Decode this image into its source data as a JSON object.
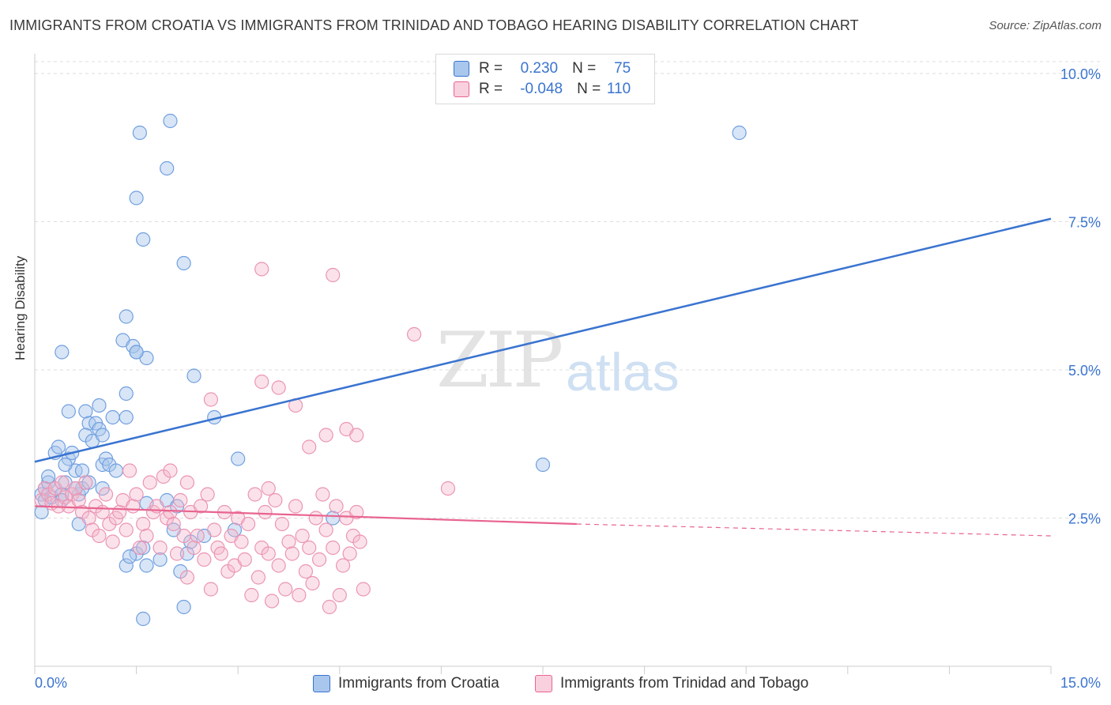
{
  "title": "IMMIGRANTS FROM CROATIA VS IMMIGRANTS FROM TRINIDAD AND TOBAGO HEARING DISABILITY CORRELATION CHART",
  "source": "Source: ZipAtlas.com",
  "watermark": {
    "part1": "ZIP",
    "part2": "atlas"
  },
  "colors": {
    "blue": "#3a74d0",
    "blue_fill": "#a9c6ec",
    "pink": "#e8648f",
    "pink_fill": "#f4b6ca",
    "grid": "#dddddd",
    "axis_text": "#3a74d0"
  },
  "legend": {
    "rows": [
      {
        "r_label": "R =",
        "r_value": "0.230",
        "n_label": "N =",
        "n_value": "75"
      },
      {
        "r_label": "R =",
        "r_value": "-0.048",
        "n_label": "N =",
        "n_value": "110"
      }
    ]
  },
  "bottom_legend": {
    "series1": "Immigrants from Croatia",
    "series2": "Immigrants from Trinidad and Tobago"
  },
  "chart_data": {
    "type": "scatter",
    "title": "IMMIGRANTS FROM CROATIA VS IMMIGRANTS FROM TRINIDAD AND TOBAGO HEARING DISABILITY CORRELATION CHART",
    "xlabel": "",
    "ylabel": "Hearing Disability",
    "xlim": [
      0,
      15
    ],
    "ylim": [
      0,
      10.2
    ],
    "x_tick_labels": [
      "0.0%",
      "15.0%"
    ],
    "y_ticks": [
      2.5,
      5.0,
      7.5,
      10.0
    ],
    "y_tick_labels": [
      "2.5%",
      "5.0%",
      "7.5%",
      "10.0%"
    ],
    "grid": true,
    "legend_position": "top-center",
    "series": [
      {
        "name": "Immigrants from Croatia",
        "color": "#3a74d0",
        "trend": {
          "x": [
            0,
            15
          ],
          "y": [
            3.45,
            7.55
          ]
        },
        "points": [
          [
            0.1,
            2.6
          ],
          [
            0.1,
            2.9
          ],
          [
            0.15,
            3.0
          ],
          [
            0.15,
            2.8
          ],
          [
            0.2,
            3.1
          ],
          [
            0.25,
            2.85
          ],
          [
            0.2,
            3.2
          ],
          [
            0.3,
            3.6
          ],
          [
            0.35,
            3.7
          ],
          [
            0.3,
            3.0
          ],
          [
            0.4,
            2.9
          ],
          [
            0.45,
            3.1
          ],
          [
            0.5,
            3.5
          ],
          [
            0.5,
            4.3
          ],
          [
            0.55,
            3.6
          ],
          [
            0.6,
            3.3
          ],
          [
            0.4,
            2.8
          ],
          [
            0.65,
            2.9
          ],
          [
            0.7,
            3.0
          ],
          [
            0.75,
            4.3
          ],
          [
            0.8,
            4.1
          ],
          [
            0.75,
            3.9
          ],
          [
            0.85,
            3.8
          ],
          [
            0.9,
            4.1
          ],
          [
            0.95,
            4.0
          ],
          [
            1.0,
            3.4
          ],
          [
            1.05,
            3.5
          ],
          [
            1.1,
            3.4
          ],
          [
            0.7,
            3.3
          ],
          [
            0.8,
            3.1
          ],
          [
            0.6,
            3.0
          ],
          [
            0.65,
            2.4
          ],
          [
            0.45,
            3.4
          ],
          [
            1.0,
            3.0
          ],
          [
            0.4,
            5.3
          ],
          [
            0.95,
            4.4
          ],
          [
            1.15,
            4.2
          ],
          [
            1.35,
            4.2
          ],
          [
            1.35,
            4.6
          ],
          [
            1.2,
            3.3
          ],
          [
            1.0,
            3.9
          ],
          [
            1.3,
            5.5
          ],
          [
            1.45,
            5.4
          ],
          [
            1.65,
            5.2
          ],
          [
            1.35,
            5.9
          ],
          [
            1.5,
            5.3
          ],
          [
            1.5,
            7.9
          ],
          [
            1.55,
            9.0
          ],
          [
            1.6,
            7.2
          ],
          [
            1.5,
            5.3
          ],
          [
            2.0,
            9.2
          ],
          [
            1.95,
            8.4
          ],
          [
            2.2,
            6.8
          ],
          [
            2.35,
            4.9
          ],
          [
            1.35,
            1.7
          ],
          [
            1.5,
            1.9
          ],
          [
            1.6,
            2.0
          ],
          [
            1.65,
            1.7
          ],
          [
            1.85,
            1.8
          ],
          [
            2.15,
            1.6
          ],
          [
            2.25,
            1.9
          ],
          [
            2.05,
            2.3
          ],
          [
            2.3,
            2.1
          ],
          [
            2.5,
            2.2
          ],
          [
            1.65,
            2.75
          ],
          [
            1.95,
            2.8
          ],
          [
            2.1,
            2.7
          ],
          [
            1.4,
            1.85
          ],
          [
            1.6,
            0.8
          ],
          [
            2.2,
            1.0
          ],
          [
            2.65,
            4.2
          ],
          [
            3.0,
            3.5
          ],
          [
            2.95,
            2.3
          ],
          [
            4.4,
            2.5
          ],
          [
            7.5,
            3.4
          ],
          [
            10.4,
            9.0
          ]
        ]
      },
      {
        "name": "Immigrants from Trinidad and Tobago",
        "color": "#e8648f",
        "trend": {
          "x": [
            0,
            8.0,
            15
          ],
          "y": [
            2.7,
            2.4,
            2.2
          ]
        },
        "points": [
          [
            0.1,
            2.8
          ],
          [
            0.15,
            3.0
          ],
          [
            0.2,
            2.9
          ],
          [
            0.25,
            2.75
          ],
          [
            0.3,
            3.0
          ],
          [
            0.35,
            2.7
          ],
          [
            0.4,
            3.1
          ],
          [
            0.45,
            2.85
          ],
          [
            0.5,
            2.7
          ],
          [
            0.55,
            2.9
          ],
          [
            0.6,
            3.0
          ],
          [
            0.65,
            2.8
          ],
          [
            0.7,
            2.6
          ],
          [
            0.75,
            3.1
          ],
          [
            0.8,
            2.5
          ],
          [
            0.85,
            2.3
          ],
          [
            0.9,
            2.7
          ],
          [
            0.95,
            2.2
          ],
          [
            1.0,
            2.6
          ],
          [
            1.05,
            2.9
          ],
          [
            1.1,
            2.4
          ],
          [
            1.15,
            2.1
          ],
          [
            1.2,
            2.5
          ],
          [
            1.25,
            2.6
          ],
          [
            1.3,
            2.8
          ],
          [
            1.35,
            2.3
          ],
          [
            1.4,
            3.3
          ],
          [
            1.45,
            2.7
          ],
          [
            1.5,
            2.9
          ],
          [
            1.55,
            2.0
          ],
          [
            1.6,
            2.4
          ],
          [
            1.65,
            2.2
          ],
          [
            1.7,
            3.1
          ],
          [
            1.75,
            2.6
          ],
          [
            1.8,
            2.7
          ],
          [
            1.85,
            2.0
          ],
          [
            1.9,
            3.2
          ],
          [
            1.95,
            2.5
          ],
          [
            2.0,
            2.6
          ],
          [
            2.05,
            2.4
          ],
          [
            2.1,
            1.9
          ],
          [
            2.15,
            2.8
          ],
          [
            2.2,
            2.2
          ],
          [
            2.25,
            1.5
          ],
          [
            2.3,
            2.6
          ],
          [
            2.35,
            2.0
          ],
          [
            2.4,
            2.2
          ],
          [
            2.45,
            2.7
          ],
          [
            2.5,
            1.8
          ],
          [
            2.55,
            2.9
          ],
          [
            2.6,
            1.3
          ],
          [
            2.65,
            2.3
          ],
          [
            2.7,
            2.0
          ],
          [
            2.75,
            1.9
          ],
          [
            2.8,
            2.6
          ],
          [
            2.85,
            1.6
          ],
          [
            2.9,
            2.2
          ],
          [
            2.95,
            1.7
          ],
          [
            3.0,
            2.5
          ],
          [
            3.05,
            2.1
          ],
          [
            3.1,
            1.8
          ],
          [
            3.15,
            2.4
          ],
          [
            3.2,
            1.2
          ],
          [
            3.25,
            2.9
          ],
          [
            3.3,
            1.5
          ],
          [
            3.35,
            2.0
          ],
          [
            3.4,
            2.6
          ],
          [
            3.45,
            1.9
          ],
          [
            3.5,
            1.1
          ],
          [
            3.55,
            2.8
          ],
          [
            3.6,
            1.7
          ],
          [
            3.65,
            2.4
          ],
          [
            3.7,
            1.3
          ],
          [
            3.75,
            2.1
          ],
          [
            3.8,
            1.9
          ],
          [
            3.85,
            2.7
          ],
          [
            3.9,
            1.2
          ],
          [
            3.95,
            2.2
          ],
          [
            4.0,
            1.6
          ],
          [
            4.05,
            2.0
          ],
          [
            4.1,
            1.4
          ],
          [
            4.15,
            2.5
          ],
          [
            4.2,
            1.8
          ],
          [
            4.25,
            2.9
          ],
          [
            4.3,
            2.3
          ],
          [
            4.35,
            1.0
          ],
          [
            4.4,
            2.0
          ],
          [
            4.45,
            2.7
          ],
          [
            4.5,
            1.2
          ],
          [
            4.55,
            1.7
          ],
          [
            4.6,
            2.5
          ],
          [
            4.65,
            1.9
          ],
          [
            4.7,
            2.2
          ],
          [
            4.75,
            2.6
          ],
          [
            4.8,
            2.1
          ],
          [
            4.85,
            1.3
          ],
          [
            2.0,
            3.3
          ],
          [
            2.25,
            3.1
          ],
          [
            3.45,
            3.0
          ],
          [
            3.6,
            4.7
          ],
          [
            3.85,
            4.4
          ],
          [
            4.05,
            3.7
          ],
          [
            2.6,
            4.5
          ],
          [
            3.35,
            4.8
          ],
          [
            4.3,
            3.9
          ],
          [
            3.35,
            6.7
          ],
          [
            4.4,
            6.6
          ],
          [
            5.6,
            5.6
          ],
          [
            4.6,
            4.0
          ],
          [
            4.75,
            3.9
          ],
          [
            6.1,
            3.0
          ]
        ]
      }
    ]
  }
}
